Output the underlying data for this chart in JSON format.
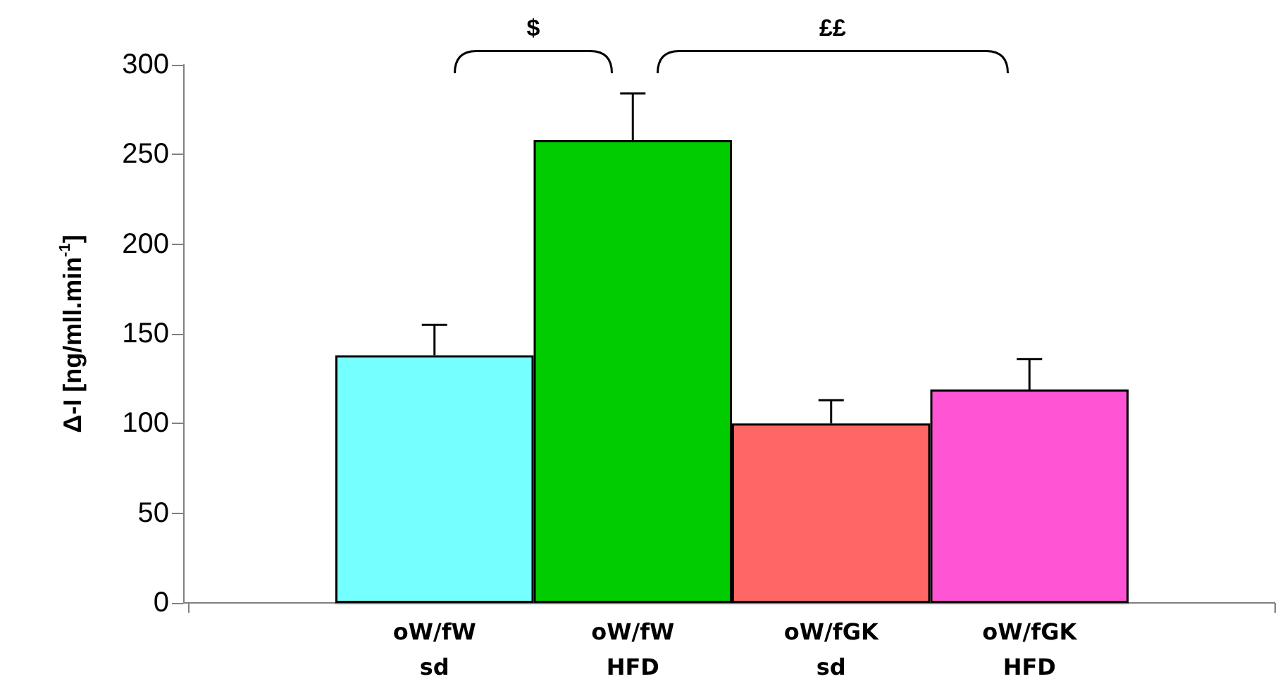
{
  "chart_data": {
    "type": "bar",
    "ylabel": "Δ-I [ng/mll.min$^{-1}$]",
    "categories": [
      "oW/fW\nsd",
      "oW/fW\nHFD",
      "oW/fGK\nsd",
      "oW/fGK\nHFD"
    ],
    "values": [
      138,
      258,
      100,
      119
    ],
    "errors": [
      17,
      26,
      13,
      17
    ],
    "colors": [
      "#75ffff",
      "#00cc00",
      "#ff6666",
      "#ff55d4"
    ],
    "ylim": [
      0,
      300
    ],
    "yticks": [
      0,
      50,
      100,
      150,
      200,
      250,
      300
    ],
    "grid": false,
    "annotations": [
      "$",
      "££"
    ]
  }
}
